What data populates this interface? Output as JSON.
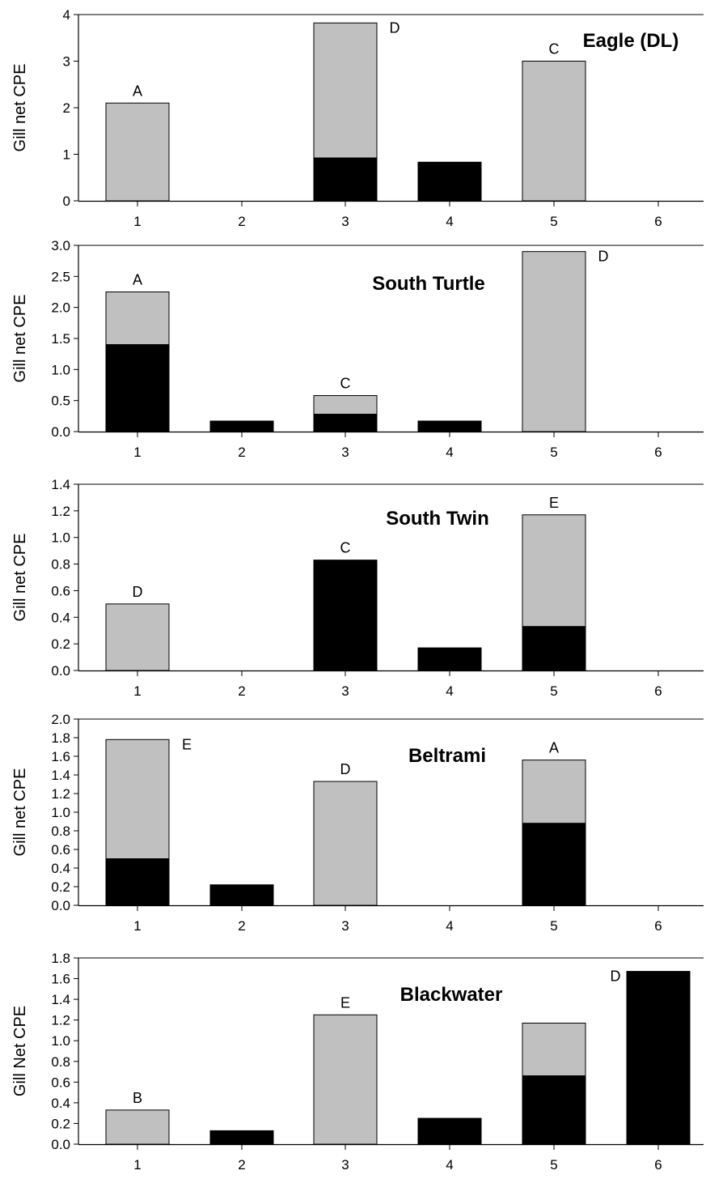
{
  "colors": {
    "lower": "#000000",
    "upper": "#c0c0c0",
    "axis": "#000000",
    "outline": "#000000"
  },
  "chart_data": [
    {
      "type": "bar",
      "stacked": true,
      "title": "Eagle (DL)",
      "ylabel": "Gill net CPE",
      "xlabel": "",
      "categories": [
        "1",
        "2",
        "3",
        "4",
        "5",
        "6"
      ],
      "ylim": [
        0,
        4
      ],
      "yticks": [
        "0",
        "1",
        "2",
        "3",
        "4"
      ],
      "series": [
        {
          "values": [
            0,
            0,
            0.92,
            0.83,
            0,
            0
          ]
        },
        {
          "values": [
            2.1,
            0,
            2.9,
            0,
            3.0,
            0
          ]
        }
      ],
      "annotations": [
        {
          "text": "A",
          "category": "1",
          "y": 2.1
        },
        {
          "text": "D",
          "category": "3",
          "y": 3.82
        },
        {
          "text": "C",
          "category": "5",
          "y": 3.0
        }
      ]
    },
    {
      "type": "bar",
      "stacked": true,
      "title": "South Turtle",
      "ylabel": "Gill net CPE",
      "xlabel": "",
      "categories": [
        "1",
        "2",
        "3",
        "4",
        "5",
        "6"
      ],
      "ylim": [
        0,
        3.0
      ],
      "yticks": [
        "0.0",
        "0.5",
        "1.0",
        "1.5",
        "2.0",
        "2.5",
        "3.0"
      ],
      "series": [
        {
          "values": [
            1.4,
            0.17,
            0.28,
            0.17,
            0,
            0
          ]
        },
        {
          "values": [
            0.85,
            0,
            0.3,
            0,
            2.9,
            0
          ]
        }
      ],
      "annotations": [
        {
          "text": "A",
          "category": "1",
          "y": 2.25
        },
        {
          "text": "C",
          "category": "3",
          "y": 0.58
        },
        {
          "text": "D",
          "category": "5",
          "y": 2.9
        }
      ]
    },
    {
      "type": "bar",
      "stacked": true,
      "title": "South Twin",
      "ylabel": "Gill net CPE",
      "xlabel": "",
      "categories": [
        "1",
        "2",
        "3",
        "4",
        "5",
        "6"
      ],
      "ylim": [
        0,
        1.4
      ],
      "yticks": [
        "0.0",
        "0.2",
        "0.4",
        "0.6",
        "0.8",
        "1.0",
        "1.2",
        "1.4"
      ],
      "series": [
        {
          "values": [
            0,
            0,
            0.83,
            0.17,
            0.33,
            0
          ]
        },
        {
          "values": [
            0.5,
            0,
            0,
            0,
            0.84,
            0
          ]
        }
      ],
      "annotations": [
        {
          "text": "D",
          "category": "1",
          "y": 0.5
        },
        {
          "text": "C",
          "category": "3",
          "y": 0.83
        },
        {
          "text": "E",
          "category": "5",
          "y": 1.17
        }
      ]
    },
    {
      "type": "bar",
      "stacked": true,
      "title": "Beltrami",
      "ylabel": "Gill net CPE",
      "xlabel": "",
      "categories": [
        "1",
        "2",
        "3",
        "4",
        "5",
        "6"
      ],
      "ylim": [
        0,
        2.0
      ],
      "yticks": [
        "0.0",
        "0.2",
        "0.4",
        "0.6",
        "0.8",
        "1.0",
        "1.2",
        "1.4",
        "1.6",
        "1.8",
        "2.0"
      ],
      "series": [
        {
          "values": [
            0.5,
            0.22,
            0,
            0,
            0.88,
            0
          ]
        },
        {
          "values": [
            1.28,
            0,
            1.33,
            0,
            0.68,
            0
          ]
        }
      ],
      "annotations": [
        {
          "text": "E",
          "category": "1",
          "y": 1.78
        },
        {
          "text": "D",
          "category": "3",
          "y": 1.33
        },
        {
          "text": "A",
          "category": "5",
          "y": 1.56
        }
      ]
    },
    {
      "type": "bar",
      "stacked": true,
      "title": "Blackwater",
      "ylabel": "Gill Net CPE",
      "xlabel": "",
      "categories": [
        "1",
        "2",
        "3",
        "4",
        "5",
        "6"
      ],
      "ylim": [
        0,
        1.8
      ],
      "yticks": [
        "0.0",
        "0.2",
        "0.4",
        "0.6",
        "0.8",
        "1.0",
        "1.2",
        "1.4",
        "1.6",
        "1.8"
      ],
      "series": [
        {
          "values": [
            0,
            0.13,
            0,
            0.25,
            0.66,
            1.67
          ]
        },
        {
          "values": [
            0.33,
            0,
            1.25,
            0,
            0.51,
            0
          ]
        }
      ],
      "annotations": [
        {
          "text": "B",
          "category": "1",
          "y": 0.33
        },
        {
          "text": "E",
          "category": "3",
          "y": 1.25
        },
        {
          "text": "D",
          "category": "6",
          "y": 1.67
        }
      ]
    }
  ]
}
